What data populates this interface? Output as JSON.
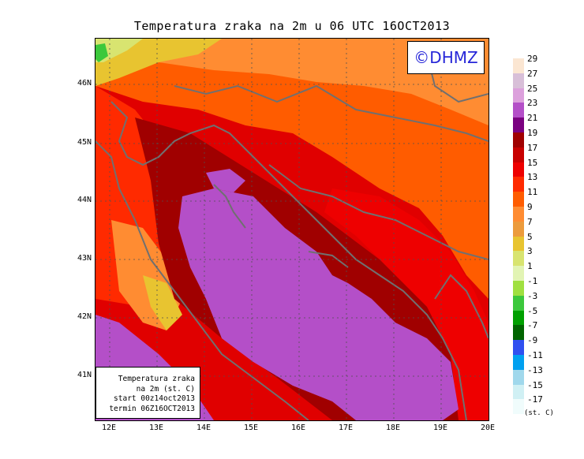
{
  "title": "Temperatura zraka na 2m u 06 UTC 16OCT2013",
  "logo": "©DHMZ",
  "info_box": {
    "line1": "Temperatura zraka",
    "line2": "na 2m (st. C)",
    "line3": "start 00z14oct2013",
    "line4": "termin 06Z16OCT2013"
  },
  "latitude_labels": [
    "46N",
    "45N",
    "44N",
    "43N",
    "42N",
    "41N"
  ],
  "longitude_labels": [
    "12E",
    "13E",
    "14E",
    "15E",
    "16E",
    "17E",
    "18E",
    "19E",
    "20E"
  ],
  "legend": {
    "unit": "(st. C)",
    "labels": [
      "29",
      "27",
      "25",
      "23",
      "21",
      "19",
      "17",
      "15",
      "13",
      "11",
      "9",
      "7",
      "5",
      "3",
      "1",
      "-1",
      "-3",
      "-5",
      "-7",
      "-9",
      "-11",
      "-13",
      "-15",
      "-17"
    ],
    "colors": [
      "#fbe6d2",
      "#d8bfd8",
      "#dca0dc",
      "#b44fc8",
      "#7a0080",
      "#a00000",
      "#c80000",
      "#ee0000",
      "#ff2a00",
      "#ff5c00",
      "#ff8c32",
      "#ec9b3c",
      "#e8c430",
      "#d8e470",
      "#e2f4b4",
      "#a0e040",
      "#3cc83c",
      "#00a000",
      "#006400",
      "#3050f0",
      "#00a0f0",
      "#a0d8ec",
      "#d0f0f4",
      "#f0fcfc"
    ]
  }
}
